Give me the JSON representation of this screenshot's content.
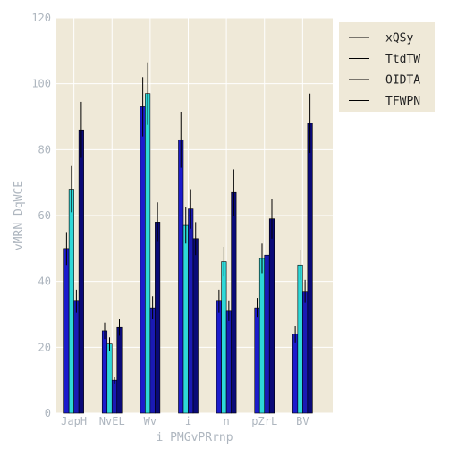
{
  "chart_data": {
    "type": "bar",
    "xlabel": "i PMGvPRrnp",
    "ylabel": "vMRN DqWCE",
    "ylim": [
      0,
      120
    ],
    "yticks": [
      0,
      20,
      40,
      60,
      80,
      100,
      120
    ],
    "grid": true,
    "legend_position": "top-right-outside",
    "categories": [
      "JapH",
      "NvEL",
      "Wv",
      "i",
      "n",
      "pZrL",
      "BV"
    ],
    "series": [
      {
        "name": "xQSy",
        "color": "#1c1ccc",
        "values": [
          50,
          25,
          93,
          83,
          34,
          32,
          24
        ],
        "errors": [
          5,
          2.5,
          9,
          8.5,
          3.5,
          3,
          2.5
        ]
      },
      {
        "name": "TtdTW",
        "color": "#2ed8d8",
        "values": [
          68,
          21,
          97,
          57,
          46,
          47,
          45
        ],
        "errors": [
          7,
          2,
          9.5,
          5.5,
          4.5,
          4.5,
          4.5
        ]
      },
      {
        "name": "OIDTA",
        "color": "#1a1ab4",
        "values": [
          34,
          10,
          32,
          62,
          31,
          48,
          37
        ],
        "errors": [
          3.5,
          1,
          3.5,
          6,
          3,
          5,
          3.5
        ]
      },
      {
        "name": "TFWPN",
        "color": "#0a0a78",
        "values": [
          86,
          26,
          58,
          53,
          67,
          59,
          88
        ],
        "errors": [
          8.5,
          2.5,
          6,
          5,
          7,
          6,
          9
        ]
      }
    ],
    "colors": {
      "background": "#efe9d8",
      "grid": "#ffffff",
      "text": "#aeb6bf"
    }
  }
}
